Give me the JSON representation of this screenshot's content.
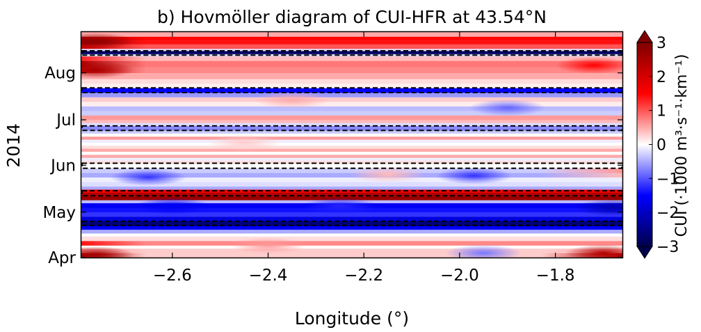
{
  "chart_data": {
    "type": "heatmap",
    "title": "b) Hovmöller diagram of CUI-HFR at 43.54°N",
    "xlabel": "Longitude (°)",
    "ylabel": "2014",
    "xlim": [
      -2.79,
      -1.66
    ],
    "x_ticks": [
      -2.6,
      -2.4,
      -2.2,
      -2.0,
      -1.8
    ],
    "x_tick_labels": [
      "−2.6",
      "−2.4",
      "−2.2",
      "−2.0",
      "−1.8"
    ],
    "y_tick_labels": [
      "Apr",
      "May",
      "Jun",
      "Jul",
      "Aug"
    ],
    "ylim_days": [
      0,
      149
    ],
    "y_ticks_days": [
      0,
      30,
      61,
      91,
      122
    ],
    "colorbar": {
      "label": "CUI (·1000 m³·s⁻¹·km⁻¹)",
      "range": [
        -3,
        3
      ],
      "ticks": [
        -3,
        -2,
        -1,
        0,
        1,
        2,
        3
      ],
      "tick_labels": [
        "−3",
        "−2",
        "−1",
        "0",
        "1",
        "2",
        "3"
      ],
      "cmap": "seismic",
      "extend": "both"
    },
    "dashed_boxes_days": [
      [
        21.2,
        23.9
      ],
      [
        40.8,
        44.1
      ],
      [
        59.0,
        62.3
      ],
      [
        84.0,
        87.0
      ],
      [
        109.0,
        112.1
      ],
      [
        133.7,
        136.6
      ]
    ],
    "bands": [
      {
        "t0": 0,
        "t1": 3,
        "value": 0.3,
        "west": 2.5,
        "east": 2.4
      },
      {
        "t0": 3,
        "t1": 6,
        "value": 0.3,
        "west": 0.6,
        "east": 0.5
      },
      {
        "t0": 6,
        "t1": 8,
        "value": 0.0
      },
      {
        "t0": 8,
        "t1": 11,
        "value": 0.7,
        "west": 1.4
      },
      {
        "t0": 11,
        "t1": 14,
        "value": 0.2
      },
      {
        "t0": 14,
        "t1": 16,
        "value": 0.0
      },
      {
        "t0": 16,
        "t1": 18.5,
        "value": -0.5
      },
      {
        "t0": 18.5,
        "t1": 21,
        "value": -1.5
      },
      {
        "t0": 21,
        "t1": 24,
        "value": -2.6
      },
      {
        "t0": 24,
        "t1": 27,
        "value": -1.8
      },
      {
        "t0": 27,
        "t1": 30,
        "value": -1.2
      },
      {
        "t0": 30,
        "t1": 33,
        "value": -1.4
      },
      {
        "t0": 33,
        "t1": 36,
        "value": -1.6
      },
      {
        "t0": 36,
        "t1": 38,
        "value": -0.4
      },
      {
        "t0": 38,
        "t1": 40.5,
        "value": 2.7
      },
      {
        "t0": 40.5,
        "t1": 43,
        "value": 2.4
      },
      {
        "t0": 43,
        "t1": 45,
        "value": 1.6
      },
      {
        "t0": 45,
        "t1": 47,
        "value": -0.5
      },
      {
        "t0": 47,
        "t1": 50,
        "value": -0.2
      },
      {
        "t0": 50,
        "t1": 53,
        "value": -0.1
      },
      {
        "t0": 53,
        "t1": 56,
        "value": -0.5,
        "east": 0.4
      },
      {
        "t0": 56,
        "t1": 59,
        "value": -0.3,
        "east": 0.6
      },
      {
        "t0": 59,
        "t1": 62,
        "value": 0.0
      },
      {
        "t0": 62,
        "t1": 64,
        "value": 0.2
      },
      {
        "t0": 64,
        "t1": 66,
        "value": -0.1
      },
      {
        "t0": 66,
        "t1": 68,
        "value": 0.5
      },
      {
        "t0": 68,
        "t1": 70,
        "value": 0.0
      },
      {
        "t0": 70,
        "t1": 72,
        "value": 0.5
      },
      {
        "t0": 72,
        "t1": 74,
        "value": 0.2
      },
      {
        "t0": 74,
        "t1": 76,
        "value": 0.0
      },
      {
        "t0": 76,
        "t1": 78,
        "value": -0.1
      },
      {
        "t0": 78,
        "t1": 80,
        "value": 0.6
      },
      {
        "t0": 80,
        "t1": 82,
        "value": 0.0
      },
      {
        "t0": 82,
        "t1": 84,
        "value": -0.3
      },
      {
        "t0": 84,
        "t1": 87,
        "value": -0.7
      },
      {
        "t0": 87,
        "t1": 89,
        "value": -0.2
      },
      {
        "t0": 89,
        "t1": 91,
        "value": 0.4
      },
      {
        "t0": 91,
        "t1": 94,
        "value": 0.6
      },
      {
        "t0": 94,
        "t1": 97,
        "value": -0.3
      },
      {
        "t0": 97,
        "t1": 100,
        "value": -0.4
      },
      {
        "t0": 100,
        "t1": 103,
        "value": 0.1
      },
      {
        "t0": 103,
        "t1": 106,
        "value": 0.3
      },
      {
        "t0": 106,
        "t1": 109,
        "value": -0.6
      },
      {
        "t0": 109,
        "t1": 112,
        "value": -1.5
      },
      {
        "t0": 112,
        "t1": 115,
        "value": 0.1
      },
      {
        "t0": 115,
        "t1": 118,
        "value": 0.2
      },
      {
        "t0": 118,
        "t1": 122,
        "value": 0.5
      },
      {
        "t0": 122,
        "t1": 126,
        "value": 0.7,
        "west": 2.2
      },
      {
        "t0": 126,
        "t1": 130,
        "value": 0.8,
        "west": 2.5
      },
      {
        "t0": 130,
        "t1": 133,
        "value": 0.4,
        "west": 1.3
      },
      {
        "t0": 133,
        "t1": 134.5,
        "value": -0.2
      },
      {
        "t0": 134.5,
        "t1": 136.5,
        "value": -2.8
      },
      {
        "t0": 136.5,
        "t1": 138,
        "value": -0.2
      },
      {
        "t0": 138,
        "t1": 141,
        "value": 1.0,
        "west": 2.0
      },
      {
        "t0": 141,
        "t1": 144,
        "value": 1.4,
        "west": 2.8
      },
      {
        "t0": 144,
        "t1": 146,
        "value": 1.5,
        "west": 2.4
      },
      {
        "t0": 146,
        "t1": 149,
        "value": 0.5
      }
    ],
    "blobs": [
      {
        "lon": -2.76,
        "day": 2,
        "value": 2.6
      },
      {
        "lon": -1.7,
        "day": 3,
        "value": 2.4
      },
      {
        "lon": -1.95,
        "day": 3,
        "value": -0.8
      },
      {
        "lon": -2.4,
        "day": 8,
        "value": 0.6
      },
      {
        "lon": -2.6,
        "day": 34,
        "value": -1.6
      },
      {
        "lon": -2.25,
        "day": 34,
        "value": -1.3
      },
      {
        "lon": -1.68,
        "day": 33,
        "value": -2.2
      },
      {
        "lon": -2.65,
        "day": 53,
        "value": -1.2
      },
      {
        "lon": -1.97,
        "day": 54,
        "value": -1.2
      },
      {
        "lon": -2.15,
        "day": 55,
        "value": 0.4
      },
      {
        "lon": -2.45,
        "day": 76,
        "value": 0.3
      },
      {
        "lon": -1.9,
        "day": 99,
        "value": -0.9
      },
      {
        "lon": -2.35,
        "day": 104,
        "value": 0.5
      },
      {
        "lon": -2.76,
        "day": 124,
        "value": 2.5
      },
      {
        "lon": -1.72,
        "day": 127,
        "value": 1.5
      },
      {
        "lon": -2.76,
        "day": 143,
        "value": 2.8
      }
    ]
  }
}
